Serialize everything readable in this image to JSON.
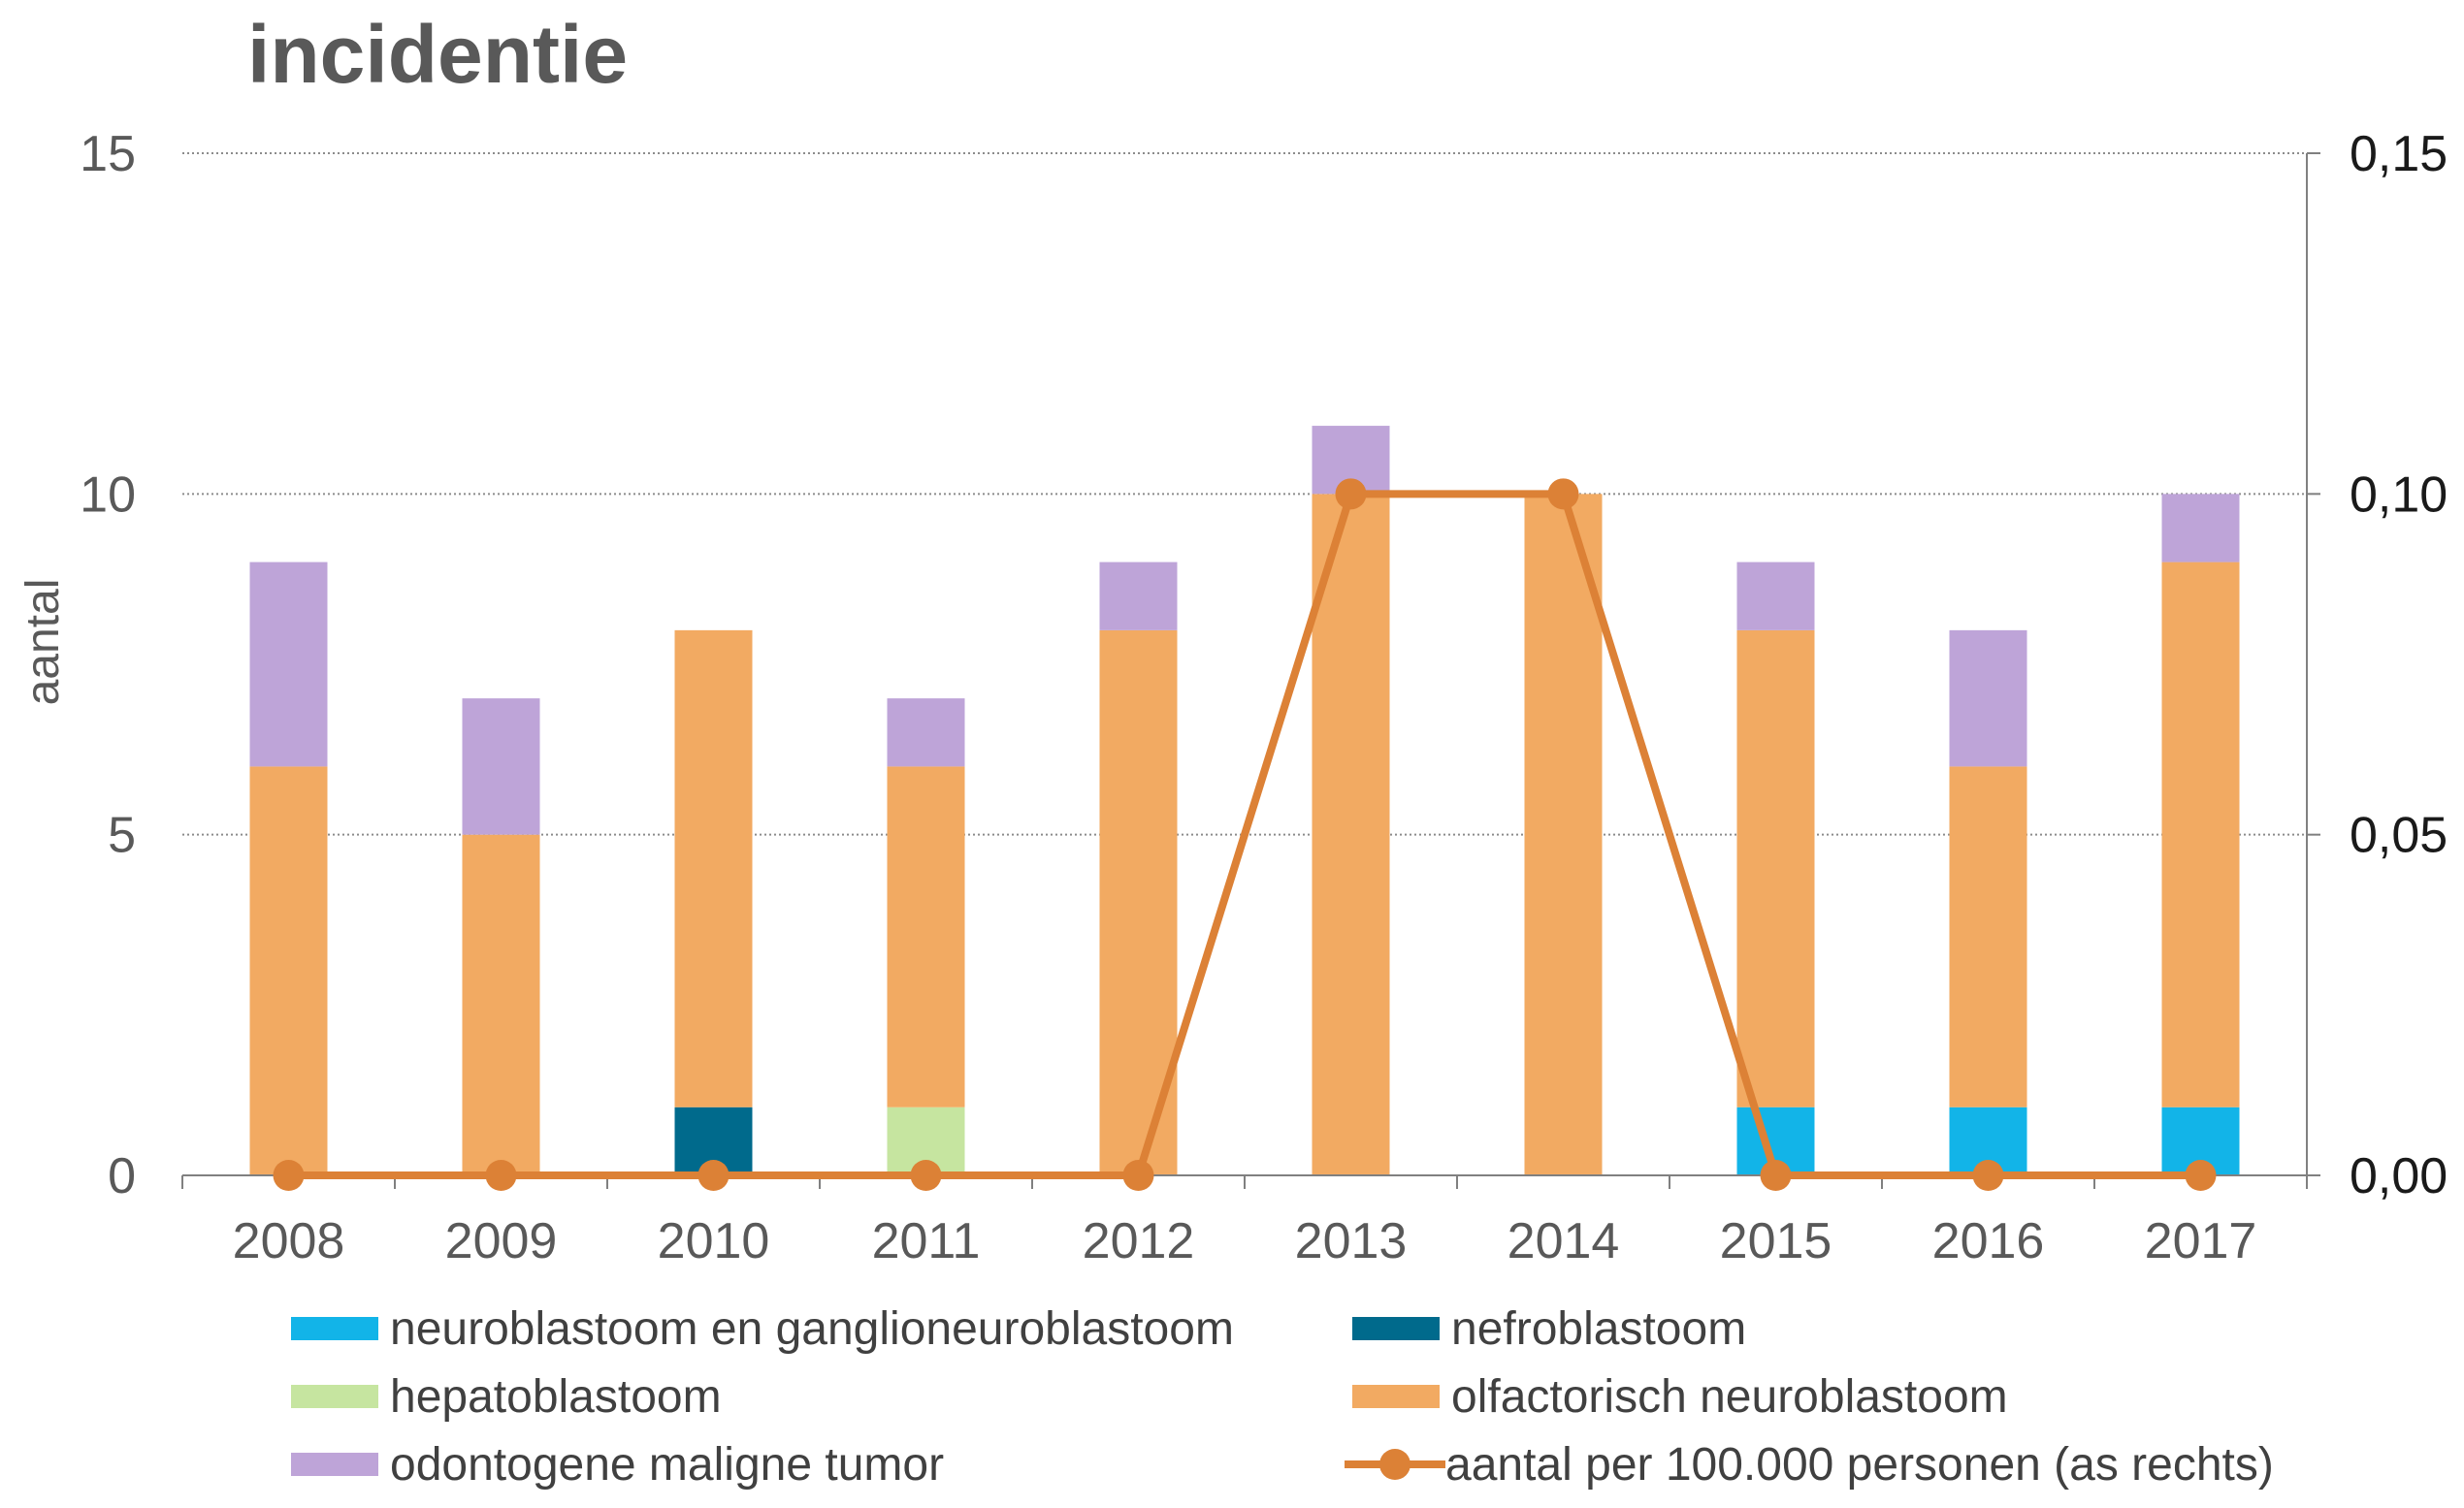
{
  "chart_data": {
    "type": "bar",
    "stacked": true,
    "title": "incidentie",
    "ylabel": "aantal",
    "ylim": [
      0,
      15
    ],
    "yticks": [
      "0",
      "5",
      "10",
      "15"
    ],
    "y2lim": [
      0,
      0.15
    ],
    "y2ticks": [
      "0,00",
      "0,05",
      "0,10",
      "0,15"
    ],
    "grid": true,
    "legend_position": "bottom",
    "categories": [
      "2008",
      "2009",
      "2010",
      "2011",
      "2012",
      "2013",
      "2014",
      "2015",
      "2016",
      "2017"
    ],
    "series": [
      {
        "name": "neuroblastoom en ganglioneuroblastoom",
        "color": "#12b4e8",
        "values": [
          0,
          0,
          0,
          0,
          0,
          0,
          0,
          1,
          1,
          1
        ]
      },
      {
        "name": "nefroblastoom",
        "color": "#006a8c",
        "values": [
          0,
          0,
          1,
          0,
          0,
          0,
          0,
          0,
          0,
          0
        ]
      },
      {
        "name": "hepatoblastoom",
        "color": "#c6e5a0",
        "values": [
          0,
          0,
          0,
          1,
          0,
          0,
          0,
          0,
          0,
          0
        ]
      },
      {
        "name": "olfactorisch neuroblastoom",
        "color": "#f2aa62",
        "values": [
          6,
          5,
          7,
          5,
          8,
          10,
          10,
          7,
          5,
          8
        ]
      },
      {
        "name": "odontogene maligne tumor",
        "color": "#bea4d8",
        "values": [
          3,
          2,
          0,
          1,
          1,
          1,
          0,
          1,
          2,
          1
        ]
      }
    ],
    "line_series": {
      "name": "aantal per 100.000 personen (as rechts)",
      "color": "#dc8136",
      "axis": "right",
      "values": [
        0,
        0,
        0,
        0,
        0,
        0.1,
        0.1,
        0,
        0,
        0
      ]
    }
  }
}
